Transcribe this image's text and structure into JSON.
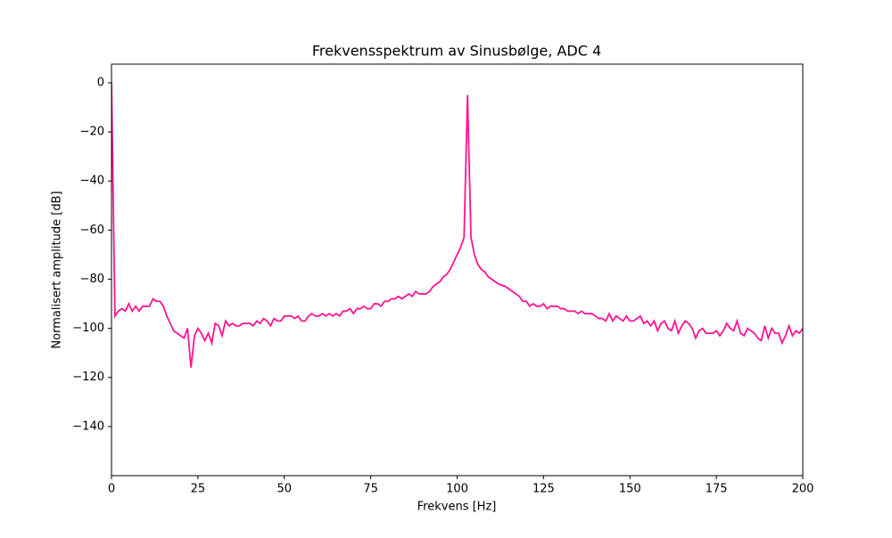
{
  "chart_data": {
    "type": "line",
    "title": "Frekvensspektrum av Sinusbølge, ADC 4",
    "xlabel": "Frekvens [Hz]",
    "ylabel": "Normalisert amplitude [dB]",
    "color": "#ff1493",
    "xlim": [
      0,
      200
    ],
    "ylim": [
      -160,
      7.6
    ],
    "xticks": [
      0,
      25,
      50,
      75,
      100,
      125,
      150,
      175,
      200
    ],
    "yticks": [
      0,
      {
        "value": -20,
        "label": "−20"
      },
      {
        "value": -40,
        "label": "−40"
      },
      {
        "value": -60,
        "label": "−60"
      },
      {
        "value": -80,
        "label": "−80"
      },
      {
        "value": -100,
        "label": "−100"
      },
      {
        "value": -120,
        "label": "−120"
      },
      {
        "value": -140,
        "label": "−140"
      }
    ],
    "grid": false,
    "x": [
      0,
      1,
      2,
      3,
      4,
      5,
      6,
      7,
      8,
      9,
      10,
      11,
      12,
      13,
      14,
      15,
      16,
      17,
      18,
      19,
      20,
      21,
      22,
      23,
      24,
      25,
      26,
      27,
      28,
      29,
      30,
      31,
      32,
      33,
      34,
      35,
      36,
      37,
      38,
      39,
      40,
      41,
      42,
      43,
      44,
      45,
      46,
      47,
      48,
      49,
      50,
      51,
      52,
      53,
      54,
      55,
      56,
      57,
      58,
      59,
      60,
      61,
      62,
      63,
      64,
      65,
      66,
      67,
      68,
      69,
      70,
      71,
      72,
      73,
      74,
      75,
      76,
      77,
      78,
      79,
      80,
      81,
      82,
      83,
      84,
      85,
      86,
      87,
      88,
      89,
      90,
      91,
      92,
      93,
      94,
      95,
      96,
      97,
      98,
      99,
      100,
      101,
      102,
      103,
      104,
      105,
      106,
      107,
      108,
      109,
      110,
      111,
      112,
      113,
      114,
      115,
      116,
      117,
      118,
      119,
      120,
      121,
      122,
      123,
      124,
      125,
      126,
      127,
      128,
      129,
      130,
      131,
      132,
      133,
      134,
      135,
      136,
      137,
      138,
      139,
      140,
      141,
      142,
      143,
      144,
      145,
      146,
      147,
      148,
      149,
      150,
      151,
      152,
      153,
      154,
      155,
      156,
      157,
      158,
      159,
      160,
      161,
      162,
      163,
      164,
      165,
      166,
      167,
      168,
      169,
      170,
      171,
      172,
      173,
      174,
      175,
      176,
      177,
      178,
      179,
      180,
      181,
      182,
      183,
      184,
      185,
      186,
      187,
      188,
      189,
      190,
      191,
      192,
      193,
      194,
      195,
      196,
      197,
      198,
      199,
      200
    ],
    "values": [
      0,
      -95,
      -93,
      -92,
      -93,
      -90,
      -93,
      -91,
      -93,
      -91,
      -91,
      -91,
      -88,
      -89,
      -89,
      -91,
      -95,
      -98,
      -101,
      -102,
      -103,
      -104,
      -100,
      -116,
      -103,
      -100,
      -102,
      -105,
      -102,
      -106,
      -98,
      -99,
      -103,
      -97,
      -99,
      -98,
      -99,
      -99,
      -98,
      -98,
      -98,
      -99,
      -97,
      -98,
      -96,
      -97,
      -99,
      -96,
      -97,
      -97,
      -95,
      -95,
      -95,
      -96,
      -95,
      -97,
      -97,
      -95,
      -94,
      -95,
      -95,
      -94,
      -95,
      -94,
      -95,
      -94,
      -95,
      -93,
      -93,
      -92,
      -94,
      -92,
      -92,
      -91,
      -92,
      -92,
      -90,
      -90,
      -91,
      -89,
      -89,
      -88,
      -88,
      -87,
      -88,
      -87,
      -86,
      -87,
      -85,
      -86,
      -86,
      -86,
      -85,
      -83,
      -82,
      -81,
      -79,
      -78,
      -76,
      -73,
      -70,
      -67,
      -63,
      -5,
      -63,
      -70,
      -74,
      -76,
      -77,
      -79,
      -80,
      -81,
      -82,
      -82.5,
      -83,
      -84,
      -85,
      -86,
      -87,
      -89,
      -89,
      -91,
      -90,
      -91,
      -91,
      -90,
      -92,
      -91,
      -91,
      -91,
      -92,
      -92,
      -93,
      -93,
      -93,
      -94,
      -93,
      -94,
      -94,
      -94,
      -95,
      -96,
      -96,
      -97,
      -94,
      -97,
      -95,
      -96,
      -97,
      -95,
      -97,
      -97,
      -96,
      -95,
      -98,
      -97,
      -99,
      -97,
      -101,
      -98,
      -97,
      -100,
      -101,
      -97,
      -102,
      -99,
      -97,
      -98,
      -100,
      -104,
      -101,
      -100,
      -102,
      -102,
      -102,
      -101,
      -103,
      -101,
      -98,
      -100,
      -101,
      -97,
      -102,
      -103,
      -100,
      -101,
      -102,
      -104,
      -105,
      -99,
      -104,
      -100,
      -102,
      -102,
      -106,
      -103,
      -99,
      -103,
      -101,
      -102,
      -100
    ]
  }
}
